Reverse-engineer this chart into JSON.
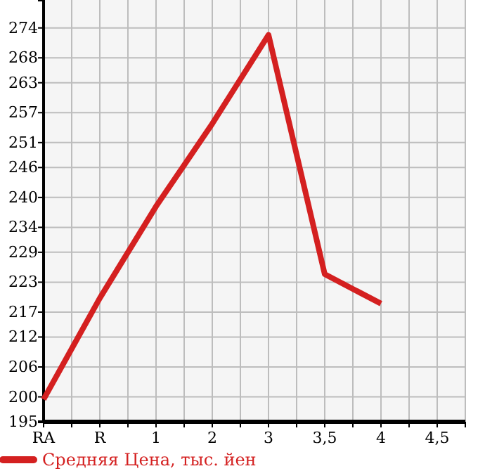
{
  "chart_data": {
    "type": "line",
    "categories": [
      "RA",
      "R",
      "1",
      "2",
      "3",
      "3,5",
      "4",
      "4,5"
    ],
    "series": [
      {
        "name": "Средняя Цена, тыс. йен",
        "color": "#d42020",
        "values": [
          199.5,
          219.8,
          238.2,
          254.8,
          272.6,
          224.6,
          218.7,
          null
        ]
      }
    ],
    "ylim": [
      195,
      279.6
    ],
    "yticks": [
      195,
      200,
      206,
      212,
      217,
      223,
      229,
      234,
      240,
      246,
      251,
      257,
      263,
      268,
      274
    ],
    "grid": true,
    "legend": "bottom",
    "marker": "none",
    "line_style": "solid"
  }
}
